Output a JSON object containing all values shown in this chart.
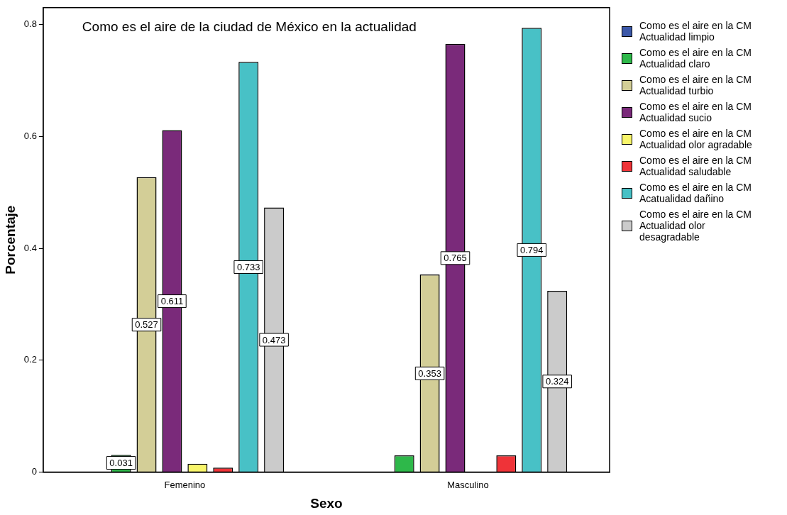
{
  "chart_data": {
    "type": "bar",
    "title": "Como es el aire de la ciudad de México en la actualidad",
    "xlabel": "Sexo",
    "ylabel": "Porcentaje",
    "categories": [
      "Femenino",
      "Masculino"
    ],
    "series": [
      {
        "name": "Como es el aire en la CM Actualidad limpio",
        "color": "#3c58a8",
        "values": [
          0,
          0
        ]
      },
      {
        "name": "Como es el aire en la CM Actualidad claro",
        "color": "#2eb84a",
        "values": [
          0.031,
          0.03
        ],
        "value_labels": [
          "0.031",
          null
        ]
      },
      {
        "name": "Como es el aire en la CM Actualidad turbio",
        "color": "#d3ce97",
        "values": [
          0.527,
          0.353
        ],
        "value_labels": [
          "0.527",
          "0.353"
        ]
      },
      {
        "name": "Como es el aire en la CM Actualidad sucio",
        "color": "#7a2a7a",
        "values": [
          0.611,
          0.765
        ],
        "value_labels": [
          "0.611",
          "0.765"
        ]
      },
      {
        "name": "Como es el aire en la CM Actualidad olor agradable",
        "color": "#f8f56a",
        "values": [
          0.015,
          0
        ]
      },
      {
        "name": "Como es el aire en la CM Actualidad saludable",
        "color": "#ef3338",
        "values": [
          0.008,
          0.03
        ]
      },
      {
        "name": "Como es el aire en la CM Acatualidad dañino",
        "color": "#48c1c6",
        "values": [
          0.733,
          0.794
        ],
        "value_labels": [
          "0.733",
          "0.794"
        ]
      },
      {
        "name": "Como es el aire en la CM Actualidad olor desagradable",
        "color": "#cbcbcb",
        "values": [
          0.473,
          0.324
        ],
        "value_labels": [
          "0.473",
          "0.324"
        ]
      }
    ],
    "ylim": [
      0,
      0.83
    ],
    "yticks": [
      0,
      0.2,
      0.4,
      0.6,
      0.8
    ],
    "grid": false,
    "legend": "right"
  }
}
